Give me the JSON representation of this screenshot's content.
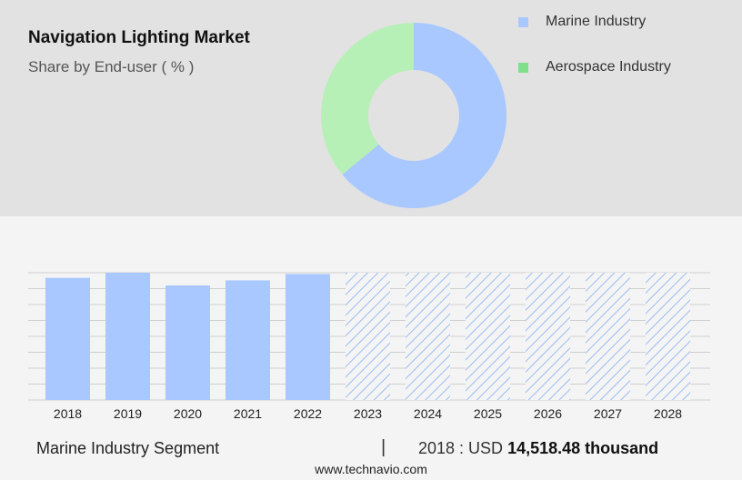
{
  "header": {
    "title": "Navigation Lighting Market",
    "subtitle": "Share by End-user ( % )"
  },
  "colors": {
    "marine": "#a8c8ff",
    "aerospace": "#b6f0b6",
    "aerospace_legend": "#7ee08a",
    "forecast_hatch": "#9bbcf0"
  },
  "chart_data": [
    {
      "type": "pie",
      "variant": "donut",
      "title": "Navigation Lighting Market",
      "subtitle": "Share by End-user ( % )",
      "categories": [
        "Marine Industry",
        "Aerospace Industry"
      ],
      "values": [
        64,
        36
      ],
      "legend_position": "top-right"
    },
    {
      "type": "bar",
      "categories": [
        "2018",
        "2019",
        "2020",
        "2021",
        "2022",
        "2023",
        "2024",
        "2025",
        "2026",
        "2027",
        "2028"
      ],
      "values": [
        96,
        100,
        90,
        94,
        99,
        100,
        100,
        100,
        100,
        100,
        100
      ],
      "forecast": [
        false,
        false,
        false,
        false,
        false,
        true,
        true,
        true,
        true,
        true,
        true
      ],
      "ylim": [
        0,
        100
      ],
      "grid": true,
      "xlabel": "",
      "ylabel": ""
    }
  ],
  "footer": {
    "segment_label": "Marine Industry Segment",
    "divider": "|",
    "value_prefix": "2018 : USD",
    "value_bold": "14,518.48 thousand"
  },
  "source": "www.technavio.com"
}
